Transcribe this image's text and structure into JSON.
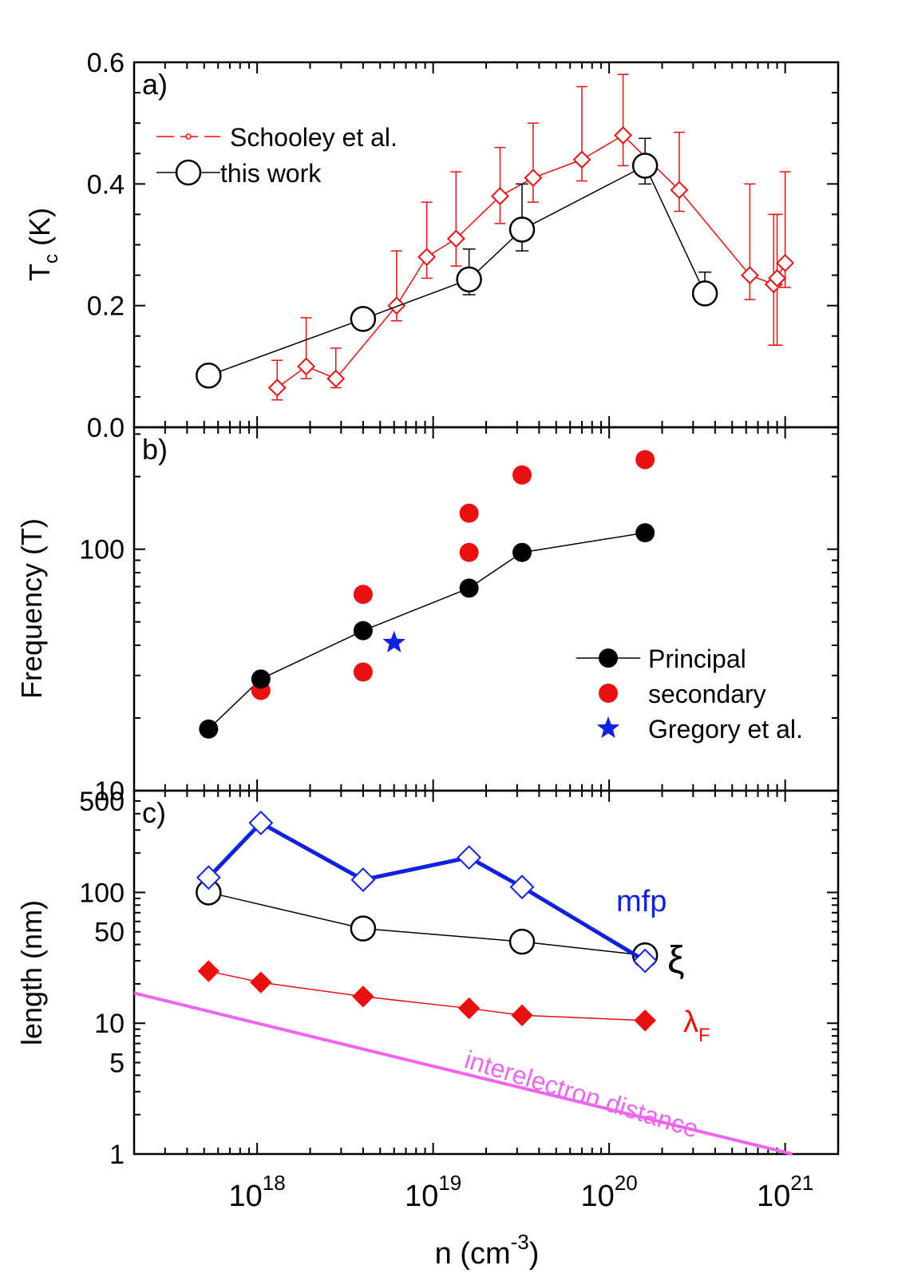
{
  "x_axis": {
    "type": "log",
    "range": [
      2e+17,
      2e+21
    ],
    "label_base": "n (cm",
    "label_exp": "-3",
    "label_close": ")",
    "tick_labels": [
      {
        "value": 1e+18,
        "base": "10",
        "exp": "18"
      },
      {
        "value": 1e+19,
        "base": "10",
        "exp": "19"
      },
      {
        "value": 1e+20,
        "base": "10",
        "exp": "20"
      },
      {
        "value": 1e+21,
        "base": "10",
        "exp": "21"
      }
    ]
  },
  "colors": {
    "red": "#e81010",
    "black": "#000000",
    "blue": "#1022dd",
    "magenta": "#ee66ee"
  },
  "chart_data": [
    {
      "type": "line",
      "panel_label": "a)",
      "ylabel_base": "T",
      "ylabel_sub": "c",
      "ylabel_rest": " (K)",
      "ylim": [
        0,
        0.6
      ],
      "yscale": "linear",
      "yticks": [
        0.0,
        0.2,
        0.4,
        0.6
      ],
      "ytick_labels": [
        "0.0",
        "0.2",
        "0.4",
        "0.6"
      ],
      "legend_position": "top-left",
      "series": [
        {
          "name": "Schooley et al.",
          "marker": "open-diamond",
          "color": "#e81010",
          "points": [
            {
              "x": 1.3e+18,
              "y": 0.065,
              "yerr_up": 0.045,
              "yerr_low": 0.02
            },
            {
              "x": 1.9e+18,
              "y": 0.1,
              "yerr_up": 0.08,
              "yerr_low": 0.02
            },
            {
              "x": 2.8e+18,
              "y": 0.08,
              "yerr_up": 0.05,
              "yerr_low": 0.015
            },
            {
              "x": 6.2e+18,
              "y": 0.2,
              "yerr_up": 0.09,
              "yerr_low": 0.025
            },
            {
              "x": 9.2e+18,
              "y": 0.28,
              "yerr_up": 0.09,
              "yerr_low": 0.035
            },
            {
              "x": 1.35e+19,
              "y": 0.31,
              "yerr_up": 0.11,
              "yerr_low": 0.045
            },
            {
              "x": 2.4e+19,
              "y": 0.38,
              "yerr_up": 0.08,
              "yerr_low": 0.045
            },
            {
              "x": 3.7e+19,
              "y": 0.41,
              "yerr_up": 0.09,
              "yerr_low": 0.04
            },
            {
              "x": 7e+19,
              "y": 0.44,
              "yerr_up": 0.12,
              "yerr_low": 0.035
            },
            {
              "x": 1.2e+20,
              "y": 0.48,
              "yerr_up": 0.1,
              "yerr_low": 0.05
            },
            {
              "x": 2.5e+20,
              "y": 0.39,
              "yerr_up": 0.095,
              "yerr_low": 0.035
            },
            {
              "x": 6.3e+20,
              "y": 0.25,
              "yerr_up": 0.15,
              "yerr_low": 0.04
            },
            {
              "x": 8.6e+20,
              "y": 0.235,
              "yerr_up": 0.115,
              "yerr_low": 0.1
            },
            {
              "x": 9e+20,
              "y": 0.245,
              "yerr_up": 0.105,
              "yerr_low": 0.11
            },
            {
              "x": 1e+21,
              "y": 0.27,
              "yerr_up": 0.15,
              "yerr_low": 0.04
            }
          ]
        },
        {
          "name": "this work",
          "marker": "open-circle",
          "color": "#000000",
          "points": [
            {
              "x": 5.3e+17,
              "y": 0.085,
              "yerr_up": 0.0,
              "yerr_low": 0.01
            },
            {
              "x": 4e+18,
              "y": 0.178,
              "yerr_up": 0.0,
              "yerr_low": 0.01
            },
            {
              "x": 1.6e+19,
              "y": 0.243,
              "yerr_up": 0.05,
              "yerr_low": 0.025
            },
            {
              "x": 3.2e+19,
              "y": 0.325,
              "yerr_up": 0.075,
              "yerr_low": 0.035
            },
            {
              "x": 1.6e+20,
              "y": 0.43,
              "yerr_up": 0.045,
              "yerr_low": 0.03
            },
            {
              "x": 3.5e+20,
              "y": 0.22,
              "yerr_up": 0.035,
              "yerr_low": 0.0
            }
          ]
        }
      ]
    },
    {
      "type": "line",
      "panel_label": "b)",
      "ylabel": "Frequency (T)",
      "ylim": [
        10,
        320
      ],
      "yscale": "log",
      "yticks": [
        10,
        100
      ],
      "ytick_labels": [
        "10",
        "100"
      ],
      "legend_position": "bottom-right",
      "series": [
        {
          "name": "Principal",
          "marker": "filled-circle",
          "color": "#000000",
          "connected": true,
          "x": [
            5.3e+17,
            1.05e+18,
            4e+18,
            1.6e+19,
            3.2e+19,
            1.6e+20
          ],
          "y": [
            18,
            29,
            46,
            69,
            97,
            117
          ]
        },
        {
          "name": "secondary",
          "marker": "filled-circle",
          "color": "#e81010",
          "connected": false,
          "x": [
            1.05e+18,
            4e+18,
            4e+18,
            1.6e+19,
            1.6e+19,
            3.2e+19,
            1.6e+20
          ],
          "y": [
            26,
            31,
            65,
            97,
            141,
            203,
            235
          ]
        },
        {
          "name": "Gregory et al.",
          "marker": "filled-star",
          "color": "#1022dd",
          "connected": false,
          "x": [
            6e+18
          ],
          "y": [
            41
          ]
        }
      ]
    },
    {
      "type": "line",
      "panel_label": "c)",
      "ylabel": "length (nm)",
      "ylim": [
        1,
        600
      ],
      "yscale": "log",
      "yticks": [
        1,
        5,
        10,
        50,
        100,
        500
      ],
      "ytick_labels": [
        "1",
        "5",
        "10",
        "50",
        "100",
        "500"
      ],
      "series": [
        {
          "name": "mfp",
          "marker": "open-diamond",
          "color": "#1022dd",
          "x": [
            5.3e+17,
            1.05e+18,
            4e+18,
            1.6e+19,
            3.2e+19,
            1.6e+20
          ],
          "y": [
            130,
            340,
            125,
            185,
            110,
            30
          ]
        },
        {
          "name": "ξ",
          "marker": "open-circle",
          "color": "#000000",
          "x": [
            5.3e+17,
            4e+18,
            3.2e+19,
            1.6e+20
          ],
          "y": [
            100,
            53,
            42,
            33
          ]
        },
        {
          "name_base": "λ",
          "name_sub": "F",
          "marker": "filled-diamond",
          "color": "#e81010",
          "x": [
            5.3e+17,
            1.05e+18,
            4e+18,
            1.6e+19,
            3.2e+19,
            1.6e+20
          ],
          "y": [
            25,
            20.5,
            16,
            13,
            11.5,
            10.5
          ]
        },
        {
          "name": "interelectron distance",
          "marker": "none",
          "color": "#ee66ee",
          "x": [
            2e+17,
            1.1e+21
          ],
          "y": [
            17,
            1
          ]
        }
      ]
    }
  ]
}
